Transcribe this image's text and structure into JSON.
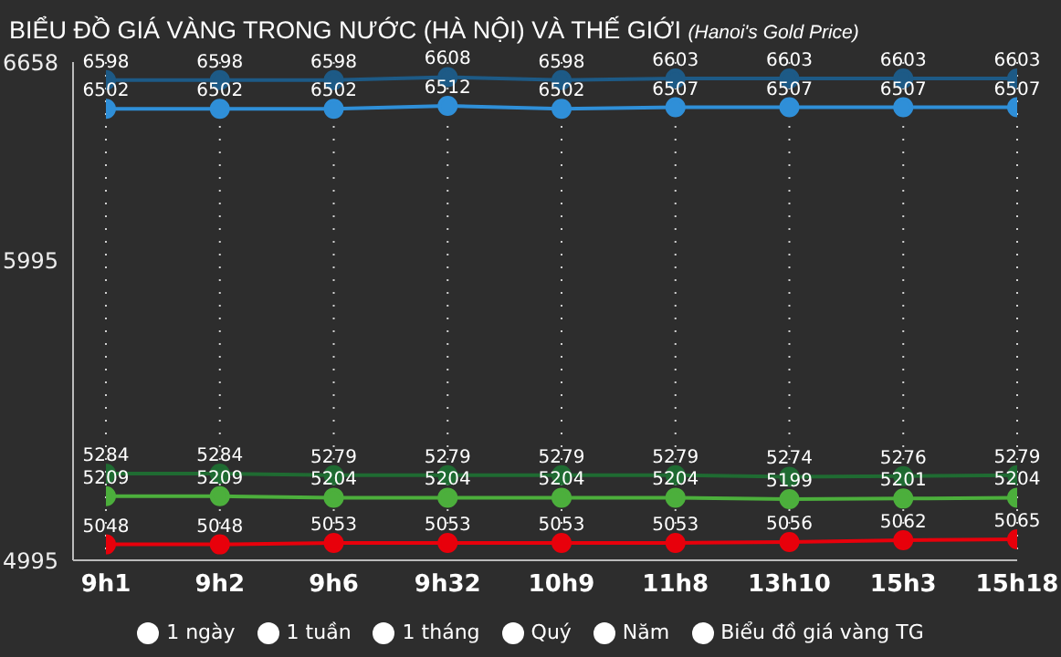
{
  "chart_data": {
    "type": "line",
    "title": "BIỂU ĐỒ GIÁ VÀNG TRONG NƯỚC (HÀ NỘI) VÀ THẾ GIỚI",
    "subtitle": "(Hanoi's Gold Price)",
    "categories": [
      "9h1",
      "9h2",
      "9h6",
      "9h32",
      "10h9",
      "11h8",
      "13h10",
      "15h3",
      "15h18"
    ],
    "series": [
      {
        "color": "#1d5a86",
        "values": [
          6598,
          6598,
          6598,
          6608,
          6598,
          6603,
          6603,
          6603,
          6603
        ]
      },
      {
        "color": "#2f8fd8",
        "values": [
          6502,
          6502,
          6502,
          6512,
          6502,
          6507,
          6507,
          6507,
          6507
        ]
      },
      {
        "color": "#1f6b32",
        "values": [
          5284,
          5284,
          5279,
          5279,
          5279,
          5279,
          5274,
          5276,
          5279
        ]
      },
      {
        "color": "#4caf3c",
        "values": [
          5209,
          5209,
          5204,
          5204,
          5204,
          5204,
          5199,
          5201,
          5204
        ]
      },
      {
        "color": "#e8000b",
        "values": [
          5048,
          5048,
          5053,
          5053,
          5053,
          5053,
          5056,
          5062,
          5065
        ]
      }
    ],
    "ylim": [
      4995,
      6658
    ],
    "yticks": [
      4995,
      5995,
      6658
    ],
    "grid": "x",
    "marker": "circle",
    "data_labels": true,
    "annotations": [
      "1 ngày",
      "1 tuần",
      "1 tháng",
      "Quý",
      "Năm",
      "Biểu đồ giá vàng TG"
    ]
  }
}
